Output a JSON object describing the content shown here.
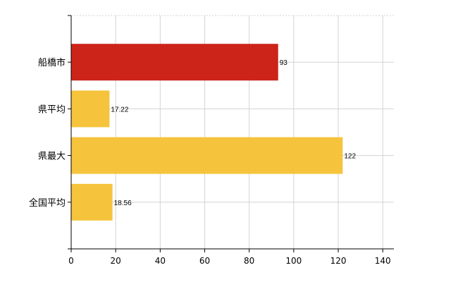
{
  "chart_data": {
    "type": "bar",
    "orientation": "horizontal",
    "categories": [
      "船橋市",
      "県平均",
      "県最大",
      "全国平均"
    ],
    "values": [
      93,
      17.22,
      122,
      18.56
    ],
    "value_labels": [
      "93",
      "17.22",
      "122",
      "18.56"
    ],
    "colors": [
      "#cc2418",
      "#f5c43c",
      "#f5c43c",
      "#f5c43c"
    ],
    "xlim": [
      0,
      145
    ],
    "xticks": [
      0,
      20,
      40,
      60,
      80,
      100,
      120,
      140
    ],
    "xtick_labels": [
      "0",
      "20",
      "40",
      "60",
      "80",
      "100",
      "120",
      "140"
    ],
    "grid": true,
    "grid_color": "#d3d3d3"
  }
}
